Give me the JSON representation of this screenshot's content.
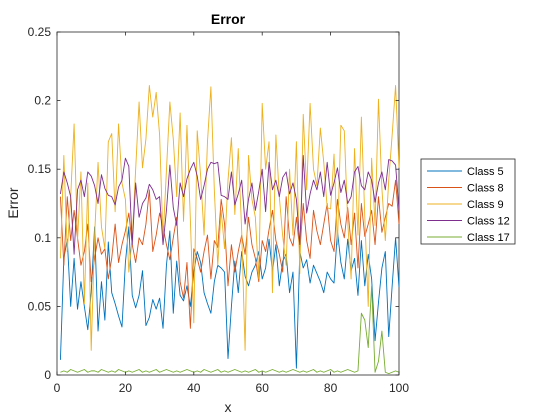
{
  "chart_data": {
    "type": "line",
    "title": "Error",
    "xlabel": "x",
    "ylabel": "Error",
    "xlim": [
      0,
      100
    ],
    "ylim": [
      0,
      0.25
    ],
    "xticks": [
      0,
      20,
      40,
      60,
      80,
      100
    ],
    "yticks": [
      0,
      0.05,
      0.1,
      0.15,
      0.2,
      0.25
    ],
    "xtick_labels": [
      "0",
      "20",
      "40",
      "60",
      "80",
      "100"
    ],
    "ytick_labels": [
      "0",
      "0.05",
      "0.1",
      "0.15",
      "0.2",
      "0.25"
    ],
    "grid": false,
    "legend_position": "outside-right",
    "series": [
      {
        "name": "Class 5",
        "color": "#0072BD",
        "x": [
          1,
          2,
          3,
          4,
          5,
          6,
          7,
          8,
          9,
          10,
          11,
          12,
          13,
          14,
          15,
          16,
          17,
          18,
          19,
          20,
          21,
          22,
          23,
          24,
          25,
          26,
          27,
          28,
          29,
          30,
          31,
          32,
          33,
          34,
          35,
          36,
          37,
          38,
          39,
          40,
          41,
          42,
          43,
          44,
          45,
          46,
          47,
          48,
          49,
          50,
          51,
          52,
          53,
          54,
          55,
          56,
          57,
          58,
          59,
          60,
          61,
          62,
          63,
          64,
          65,
          66,
          67,
          68,
          69,
          70,
          71,
          72,
          73,
          74,
          75,
          76,
          77,
          78,
          79,
          80,
          81,
          82,
          83,
          84,
          85,
          86,
          87,
          88,
          89,
          90,
          91,
          92,
          93,
          94,
          95,
          96,
          97,
          98,
          99,
          100
        ],
        "values": [
          0.011,
          0.085,
          0.099,
          0.05,
          0.085,
          0.048,
          0.068,
          0.05,
          0.033,
          0.06,
          0.108,
          0.032,
          0.068,
          0.04,
          0.097,
          0.06,
          0.052,
          0.043,
          0.035,
          0.082,
          0.108,
          0.058,
          0.049,
          0.058,
          0.076,
          0.036,
          0.042,
          0.055,
          0.048,
          0.056,
          0.034,
          0.08,
          0.105,
          0.045,
          0.083,
          0.058,
          0.054,
          0.065,
          0.05,
          0.075,
          0.09,
          0.082,
          0.06,
          0.052,
          0.045,
          0.068,
          0.08,
          0.078,
          0.075,
          0.012,
          0.05,
          0.083,
          0.06,
          0.09,
          0.072,
          0.065,
          0.075,
          0.08,
          0.09,
          0.07,
          0.078,
          0.099,
          0.075,
          0.095,
          0.065,
          0.083,
          0.088,
          0.06,
          0.075,
          0.005,
          0.09,
          0.078,
          0.084,
          0.067,
          0.08,
          0.074,
          0.068,
          0.06,
          0.075,
          0.07,
          0.067,
          0.105,
          0.082,
          0.07,
          0.099,
          0.076,
          0.085,
          0.058,
          0.098,
          0.065,
          0.088,
          0.07,
          0.025,
          0.053,
          0.078,
          0.09,
          0.028,
          0.065,
          0.1,
          0.064
        ]
      },
      {
        "name": "Class 8",
        "color": "#D95319",
        "x": [
          1,
          2,
          3,
          4,
          5,
          6,
          7,
          8,
          9,
          10,
          11,
          12,
          13,
          14,
          15,
          16,
          17,
          18,
          19,
          20,
          21,
          22,
          23,
          24,
          25,
          26,
          27,
          28,
          29,
          30,
          31,
          32,
          33,
          34,
          35,
          36,
          37,
          38,
          39,
          40,
          41,
          42,
          43,
          44,
          45,
          46,
          47,
          48,
          49,
          50,
          51,
          52,
          53,
          54,
          55,
          56,
          57,
          58,
          59,
          60,
          61,
          62,
          63,
          64,
          65,
          66,
          67,
          68,
          69,
          70,
          71,
          72,
          73,
          74,
          75,
          76,
          77,
          78,
          79,
          80,
          81,
          82,
          83,
          84,
          85,
          86,
          87,
          88,
          89,
          90,
          91,
          92,
          93,
          94,
          95,
          96,
          97,
          98,
          99,
          100
        ],
        "values": [
          0.13,
          0.08,
          0.13,
          0.098,
          0.12,
          0.1,
          0.08,
          0.09,
          0.11,
          0.068,
          0.085,
          0.1,
          0.088,
          0.092,
          0.07,
          0.085,
          0.11,
          0.082,
          0.095,
          0.105,
          0.118,
          0.095,
          0.082,
          0.1,
          0.095,
          0.11,
          0.135,
          0.09,
          0.102,
          0.118,
          0.108,
          0.095,
          0.084,
          0.1,
          0.115,
          0.068,
          0.056,
          0.082,
          0.034,
          0.092,
          0.085,
          0.075,
          0.09,
          0.102,
          0.07,
          0.098,
          0.093,
          0.128,
          0.11,
          0.065,
          0.095,
          0.075,
          0.09,
          0.102,
          0.088,
          0.115,
          0.095,
          0.085,
          0.068,
          0.098,
          0.09,
          0.106,
          0.12,
          0.098,
          0.088,
          0.075,
          0.13,
          0.1,
          0.094,
          0.115,
          0.09,
          0.125,
          0.098,
          0.085,
          0.12,
          0.105,
          0.095,
          0.11,
          0.125,
          0.098,
          0.09,
          0.128,
          0.11,
          0.1,
          0.122,
          0.095,
          0.118,
          0.078,
          0.125,
          0.101,
          0.11,
          0.12,
          0.095,
          0.13,
          0.104,
          0.115,
          0.125,
          0.123,
          0.142,
          0.11
        ]
      },
      {
        "name": "Class 9",
        "color": "#EDB120",
        "x": [
          1,
          2,
          3,
          4,
          5,
          6,
          7,
          8,
          9,
          10,
          11,
          12,
          13,
          14,
          15,
          16,
          17,
          18,
          19,
          20,
          21,
          22,
          23,
          24,
          25,
          26,
          27,
          28,
          29,
          30,
          31,
          32,
          33,
          34,
          35,
          36,
          37,
          38,
          39,
          40,
          41,
          42,
          43,
          44,
          45,
          46,
          47,
          48,
          49,
          50,
          51,
          52,
          53,
          54,
          55,
          56,
          57,
          58,
          59,
          60,
          61,
          62,
          63,
          64,
          65,
          66,
          67,
          68,
          69,
          70,
          71,
          72,
          73,
          74,
          75,
          76,
          77,
          78,
          79,
          80,
          81,
          82,
          83,
          84,
          85,
          86,
          87,
          88,
          89,
          90,
          91,
          92,
          93,
          94,
          95,
          96,
          97,
          98,
          99,
          100
        ],
        "values": [
          0.085,
          0.16,
          0.09,
          0.13,
          0.183,
          0.098,
          0.148,
          0.052,
          0.14,
          0.018,
          0.102,
          0.155,
          0.108,
          0.092,
          0.17,
          0.176,
          0.119,
          0.183,
          0.14,
          0.128,
          0.075,
          0.1,
          0.15,
          0.199,
          0.151,
          0.172,
          0.211,
          0.188,
          0.206,
          0.175,
          0.099,
          0.149,
          0.199,
          0.172,
          0.13,
          0.191,
          0.112,
          0.182,
          0.113,
          0.038,
          0.178,
          0.145,
          0.102,
          0.17,
          0.21,
          0.135,
          0.08,
          0.12,
          0.092,
          0.142,
          0.173,
          0.117,
          0.165,
          0.105,
          0.018,
          0.16,
          0.128,
          0.115,
          0.07,
          0.198,
          0.15,
          0.17,
          0.06,
          0.175,
          0.13,
          0.101,
          0.08,
          0.15,
          0.102,
          0.17,
          0.074,
          0.19,
          0.135,
          0.198,
          0.15,
          0.138,
          0.18,
          0.155,
          0.122,
          0.121,
          0.161,
          0.095,
          0.182,
          0.178,
          0.112,
          0.07,
          0.165,
          0.102,
          0.188,
          0.115,
          0.05,
          0.158,
          0.109,
          0.201,
          0.136,
          0.098,
          0.142,
          0.175,
          0.211,
          0.151
        ]
      },
      {
        "name": "Class 12",
        "color": "#7E2F8E",
        "x": [
          1,
          2,
          3,
          4,
          5,
          6,
          7,
          8,
          9,
          10,
          11,
          12,
          13,
          14,
          15,
          16,
          17,
          18,
          19,
          20,
          21,
          22,
          23,
          24,
          25,
          26,
          27,
          28,
          29,
          30,
          31,
          32,
          33,
          34,
          35,
          36,
          37,
          38,
          39,
          40,
          41,
          42,
          43,
          44,
          45,
          46,
          47,
          48,
          49,
          50,
          51,
          52,
          53,
          54,
          55,
          56,
          57,
          58,
          59,
          60,
          61,
          62,
          63,
          64,
          65,
          66,
          67,
          68,
          69,
          70,
          71,
          72,
          73,
          74,
          75,
          76,
          77,
          78,
          79,
          80,
          81,
          82,
          83,
          84,
          85,
          86,
          87,
          88,
          89,
          90,
          91,
          92,
          93,
          94,
          95,
          96,
          97,
          98,
          99,
          100
        ],
        "values": [
          0.132,
          0.148,
          0.14,
          0.13,
          0.088,
          0.135,
          0.142,
          0.13,
          0.148,
          0.145,
          0.138,
          0.125,
          0.146,
          0.136,
          0.131,
          0.13,
          0.124,
          0.137,
          0.142,
          0.158,
          0.152,
          0.095,
          0.14,
          0.115,
          0.125,
          0.129,
          0.139,
          0.135,
          0.128,
          0.13,
          0.095,
          0.12,
          0.153,
          0.122,
          0.109,
          0.14,
          0.13,
          0.143,
          0.15,
          0.155,
          0.145,
          0.128,
          0.138,
          0.15,
          0.155,
          0.154,
          0.155,
          0.131,
          0.13,
          0.128,
          0.148,
          0.124,
          0.132,
          0.142,
          0.11,
          0.128,
          0.14,
          0.12,
          0.134,
          0.15,
          0.119,
          0.155,
          0.135,
          0.142,
          0.13,
          0.144,
          0.148,
          0.132,
          0.14,
          0.128,
          0.095,
          0.16,
          0.118,
          0.132,
          0.142,
          0.135,
          0.148,
          0.13,
          0.155,
          0.131,
          0.14,
          0.151,
          0.133,
          0.142,
          0.125,
          0.13,
          0.148,
          0.152,
          0.138,
          0.135,
          0.148,
          0.142,
          0.126,
          0.14,
          0.148,
          0.135,
          0.157,
          0.156,
          0.153,
          0.12
        ]
      },
      {
        "name": "Class 17",
        "color": "#77AC30",
        "x": [
          1,
          2,
          3,
          4,
          5,
          6,
          7,
          8,
          9,
          10,
          11,
          12,
          13,
          14,
          15,
          16,
          17,
          18,
          19,
          20,
          21,
          22,
          23,
          24,
          25,
          26,
          27,
          28,
          29,
          30,
          31,
          32,
          33,
          34,
          35,
          36,
          37,
          38,
          39,
          40,
          41,
          42,
          43,
          44,
          45,
          46,
          47,
          48,
          49,
          50,
          51,
          52,
          53,
          54,
          55,
          56,
          57,
          58,
          59,
          60,
          61,
          62,
          63,
          64,
          65,
          66,
          67,
          68,
          69,
          70,
          71,
          72,
          73,
          74,
          75,
          76,
          77,
          78,
          79,
          80,
          81,
          82,
          83,
          84,
          85,
          86,
          87,
          88,
          89,
          90,
          91,
          92,
          93,
          94,
          95,
          96,
          97,
          98,
          99,
          100
        ],
        "values": [
          0.002,
          0.003,
          0.002,
          0.004,
          0.003,
          0.002,
          0.003,
          0.004,
          0.002,
          0.003,
          0.003,
          0.002,
          0.004,
          0.003,
          0.002,
          0.003,
          0.002,
          0.004,
          0.003,
          0.002,
          0.003,
          0.002,
          0.003,
          0.004,
          0.002,
          0.003,
          0.002,
          0.003,
          0.004,
          0.002,
          0.003,
          0.004,
          0.003,
          0.002,
          0.003,
          0.002,
          0.003,
          0.004,
          0.003,
          0.002,
          0.003,
          0.002,
          0.004,
          0.003,
          0.002,
          0.003,
          0.004,
          0.002,
          0.003,
          0.002,
          0.003,
          0.004,
          0.003,
          0.002,
          0.003,
          0.002,
          0.003,
          0.004,
          0.002,
          0.003,
          0.002,
          0.003,
          0.004,
          0.003,
          0.002,
          0.003,
          0.002,
          0.003,
          0.004,
          0.003,
          0.002,
          0.003,
          0.002,
          0.003,
          0.004,
          0.002,
          0.003,
          0.002,
          0.003,
          0.004,
          0.002,
          0.003,
          0.002,
          0.003,
          0.004,
          0.003,
          0.002,
          0.003,
          0.045,
          0.04,
          0.02,
          0.065,
          0.002,
          0.01,
          0.032,
          0.002,
          0.001,
          0.002,
          0.003,
          0.002
        ]
      }
    ]
  }
}
